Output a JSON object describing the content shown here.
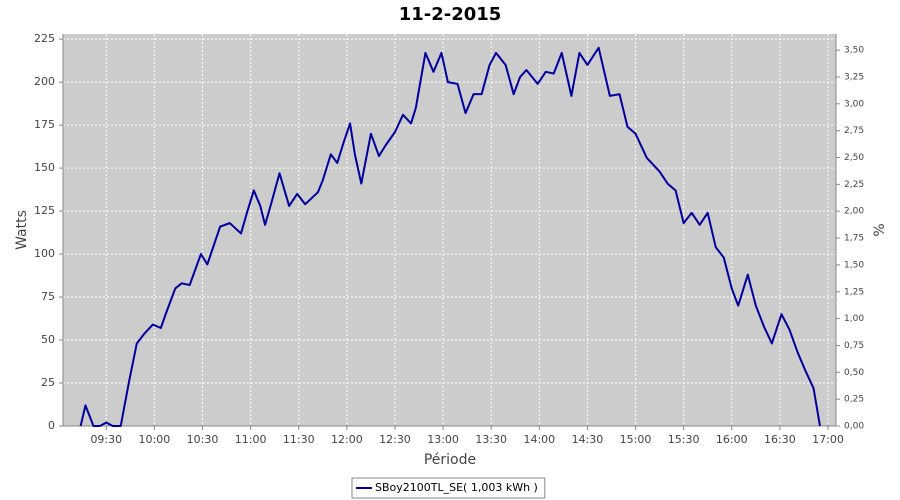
{
  "chart_data": {
    "type": "line",
    "title": "11-2-2015",
    "x_label": "Période",
    "y_label": "Watts",
    "y2_label": "%",
    "x": [
      "09:14",
      "09:17",
      "09:22",
      "09:26",
      "09:30",
      "09:34",
      "09:39",
      "09:44",
      "09:49",
      "09:54",
      "09:59",
      "10:04",
      "10:07",
      "10:13",
      "10:17",
      "10:22",
      "10:29",
      "10:33",
      "10:37",
      "10:41",
      "10:47",
      "10:54",
      "10:58",
      "11:02",
      "11:06",
      "11:09",
      "11:13",
      "11:18",
      "11:24",
      "11:29",
      "11:34",
      "11:42",
      "11:45",
      "11:50",
      "11:54",
      "11:58",
      "12:02",
      "12:05",
      "12:09",
      "12:15",
      "12:20",
      "12:24",
      "12:30",
      "12:35",
      "12:40",
      "12:43",
      "12:49",
      "12:54",
      "12:59",
      "13:03",
      "13:09",
      "13:14",
      "13:19",
      "13:24",
      "13:29",
      "13:33",
      "13:39",
      "13:44",
      "13:48",
      "13:52",
      "13:59",
      "14:04",
      "14:09",
      "14:14",
      "14:20",
      "14:25",
      "14:30",
      "14:37",
      "14:44",
      "14:50",
      "14:55",
      "15:00",
      "15:07",
      "15:15",
      "15:20",
      "15:25",
      "15:30",
      "15:35",
      "15:40",
      "15:45",
      "15:50",
      "15:55",
      "16:00",
      "16:04",
      "16:10",
      "16:15",
      "16:20",
      "16:25",
      "16:31",
      "16:36",
      "16:41",
      "16:46",
      "16:51",
      "16:55"
    ],
    "series": [
      {
        "name": "SBoy2100TL_SE( 1,003 kWh )",
        "color": "#0000a0",
        "values": [
          0,
          12,
          0,
          0,
          2,
          0,
          0,
          25,
          48,
          54,
          59,
          57,
          65,
          80,
          83,
          82,
          100,
          94,
          105,
          116,
          118,
          112,
          125,
          137,
          128,
          117,
          130,
          147,
          128,
          135,
          129,
          136,
          143,
          158,
          153,
          165,
          176,
          158,
          141,
          170,
          157,
          163,
          171,
          181,
          176,
          185,
          217,
          206,
          217,
          200,
          199,
          182,
          193,
          193,
          210,
          217,
          210,
          193,
          203,
          207,
          199,
          206,
          205,
          217,
          192,
          217,
          210,
          220,
          192,
          193,
          174,
          170,
          156,
          148,
          141,
          137,
          118,
          124,
          117,
          124,
          104,
          98,
          80,
          70,
          88,
          70,
          58,
          48,
          65,
          56,
          43,
          32,
          22,
          0
        ]
      }
    ],
    "xlim": [
      "09:03",
      "17:05"
    ],
    "xticks": [
      "09:30",
      "10:00",
      "10:30",
      "11:00",
      "11:30",
      "12:00",
      "12:30",
      "13:00",
      "13:30",
      "14:00",
      "14:30",
      "15:00",
      "15:30",
      "16:00",
      "16:30",
      "17:00"
    ],
    "ylim": [
      0,
      228
    ],
    "yticks": [
      0,
      25,
      50,
      75,
      100,
      125,
      150,
      175,
      200,
      225
    ],
    "y2lim": [
      0,
      3.65
    ],
    "y2ticks": [
      {
        "value": 0,
        "label": "0,00"
      },
      {
        "value": 0.25,
        "label": "0,25"
      },
      {
        "value": 0.5,
        "label": "0,50"
      },
      {
        "value": 0.75,
        "label": "0,75"
      },
      {
        "value": 1,
        "label": "1,00"
      },
      {
        "value": 1.25,
        "label": "1,25"
      },
      {
        "value": 1.5,
        "label": "1,50"
      },
      {
        "value": 1.75,
        "label": "1,75"
      },
      {
        "value": 2,
        "label": "2,00"
      },
      {
        "value": 2.25,
        "label": "2,25"
      },
      {
        "value": 2.5,
        "label": "2,50"
      },
      {
        "value": 2.75,
        "label": "2,75"
      },
      {
        "value": 3,
        "label": "3,00"
      },
      {
        "value": 3.25,
        "label": "3,25"
      },
      {
        "value": 3.5,
        "label": "3,50"
      }
    ],
    "grid": true,
    "plot_background": "#cccccc",
    "legend": "bottom"
  }
}
